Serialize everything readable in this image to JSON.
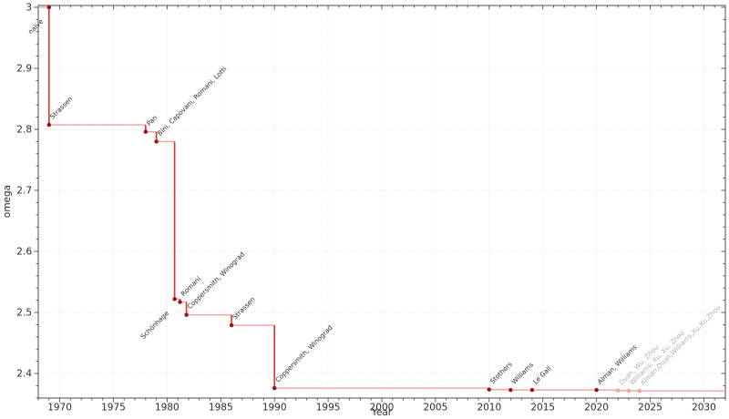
{
  "chart_data": {
    "type": "line",
    "subtype": "step-post",
    "title": "",
    "xlabel": "Year",
    "ylabel": "omega",
    "xlim": [
      1968,
      2032
    ],
    "ylim": [
      2.3597,
      3.003
    ],
    "x_major_ticks": [
      1970,
      1975,
      1980,
      1985,
      1990,
      1995,
      2000,
      2005,
      2010,
      2015,
      2020,
      2025,
      2030
    ],
    "x_tick_labels": [
      "1970",
      "1975",
      "1980",
      "1985",
      "1990",
      "1995",
      "2000",
      "2005",
      "2010",
      "2015",
      "2020",
      "2025",
      "2030"
    ],
    "x_minor_step": 1,
    "y_major_ticks": [
      3.0,
      2.9,
      2.8,
      2.7,
      2.6,
      2.5,
      2.4
    ],
    "y_tick_labels": [
      "3",
      "2.9",
      "2.8",
      "2.7",
      "2.6",
      "2.5",
      "2.4"
    ],
    "y_minor_step": 0.02,
    "grid": true,
    "grid_style": "dotted",
    "legend": false,
    "points": [
      {
        "label": "naive",
        "year": 1969,
        "omega": 3.0,
        "label_side": "below",
        "muted": false
      },
      {
        "label": "Strassen",
        "year": 1969,
        "omega": 2.8074,
        "label_side": "above",
        "muted": false
      },
      {
        "label": "Pan",
        "year": 1978,
        "omega": 2.796,
        "label_side": "above",
        "muted": false
      },
      {
        "label": "Bini, Capovani, Romani, Lotti",
        "year": 1979,
        "omega": 2.78,
        "label_side": "above",
        "muted": false
      },
      {
        "label": "Schönhage",
        "year": 1980.7,
        "omega": 2.522,
        "label_side": "below",
        "muted": false
      },
      {
        "label": "Romani",
        "year": 1981.2,
        "omega": 2.517,
        "label_side": "above",
        "muted": false
      },
      {
        "label": "Coppersmith, Winograd",
        "year": 1981.8,
        "omega": 2.496,
        "label_side": "above",
        "muted": false
      },
      {
        "label": "Strassen",
        "year": 1986,
        "omega": 2.479,
        "label_side": "above",
        "muted": false
      },
      {
        "label": "Coppersmith, Winograd",
        "year": 1990,
        "omega": 2.376,
        "label_side": "above",
        "muted": false
      },
      {
        "label": "Stothers",
        "year": 2010,
        "omega": 2.3737,
        "label_side": "above",
        "muted": false
      },
      {
        "label": "Williams",
        "year": 2012,
        "omega": 2.3729,
        "label_side": "above",
        "muted": false
      },
      {
        "label": "Le Gall",
        "year": 2014,
        "omega": 2.37287,
        "label_side": "above",
        "muted": false
      },
      {
        "label": "Alman, Williams",
        "year": 2020,
        "omega": 2.37286,
        "label_side": "above",
        "muted": false
      },
      {
        "label": "Duan, Wu, Zhou",
        "year": 2022,
        "omega": 2.371866,
        "label_side": "above",
        "muted": true
      },
      {
        "label": "Williams, Xu, Xu, Zhou",
        "year": 2023,
        "omega": 2.371552,
        "label_side": "above",
        "muted": true
      },
      {
        "label": "Alman,Duan,Williams,Xu,Xu,Zhou",
        "year": 2024,
        "omega": 2.371339,
        "label_side": "above",
        "muted": true
      }
    ],
    "colors": {
      "step_horizontal": "#f2a29e",
      "step_vertical": "#e0332d",
      "point": "#9a1010",
      "point_muted": "#f0a4a1",
      "label": "#2b2b2b",
      "label_muted": "#b3abab",
      "grid": "#dcdcdc",
      "spine": "#4d4d4d",
      "tick": "#4d4d4d",
      "tick_label": "#2b2b2b",
      "background": "#ffffff"
    }
  }
}
